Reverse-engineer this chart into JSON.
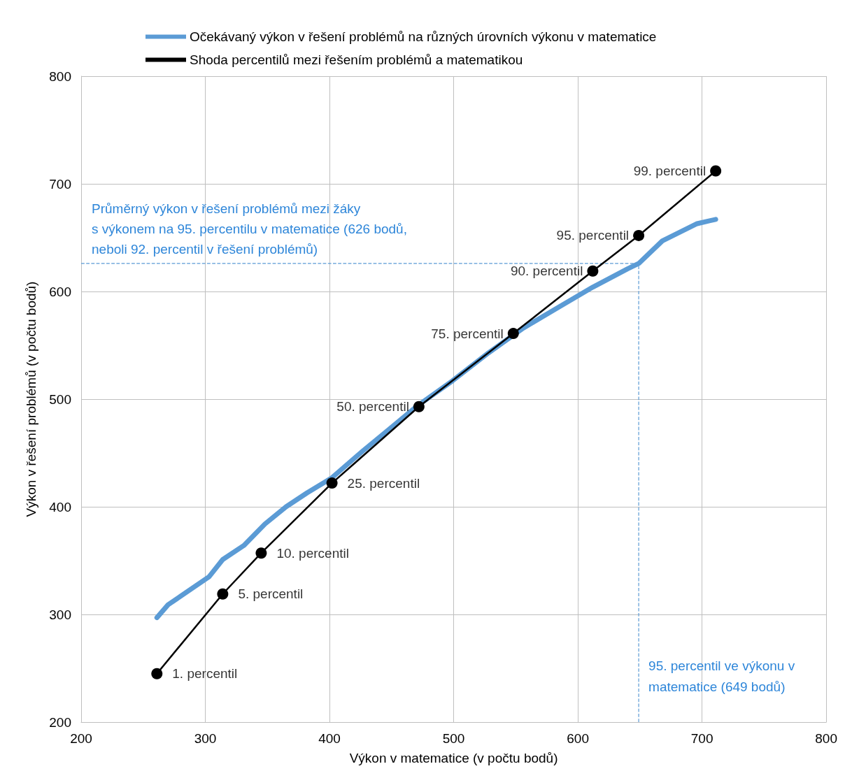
{
  "chart_data": {
    "type": "line",
    "xlabel": "Výkon v matematice (v počtu bodů)",
    "ylabel": "Výkon v řešení problémů (v počtu bodů)",
    "xlim": [
      200,
      800
    ],
    "xticks": [
      200,
      300,
      400,
      500,
      600,
      700,
      800
    ],
    "ylim": [
      200,
      800
    ],
    "yticks": [
      200,
      300,
      400,
      500,
      600,
      700,
      800
    ],
    "grid": true,
    "legend": "top",
    "line_style": "solid",
    "series": [
      {
        "name": "Očekávaný výkon v řešení problémů na různých úrovních výkonu v matematice",
        "color": "#5b9bd5",
        "marker": "none",
        "x": [
          261,
          270,
          303,
          314,
          331,
          348,
          365,
          382,
          402,
          427,
          449,
          471,
          499,
          528,
          556,
          584,
          612,
          640,
          649,
          668,
          696,
          711
        ],
        "values": [
          297,
          309,
          335,
          351,
          364,
          384,
          400,
          413,
          427,
          452,
          473,
          494,
          517,
          543,
          566,
          585,
          604,
          621,
          626,
          647,
          663,
          667
        ]
      },
      {
        "name": "Shoda percentilů mezi řešením problémů a matematikou",
        "color": "#000000",
        "marker": "circle",
        "x": [
          261,
          314,
          345,
          402,
          472,
          548,
          612,
          649,
          711
        ],
        "values": [
          245,
          319,
          357,
          422,
          493,
          561,
          619,
          652,
          712
        ]
      }
    ],
    "ref_lines": [
      {
        "axis": "y",
        "value": 626,
        "label": "Průměrný výkon v řešení problémů mezi žáky s výkonem na 95. percentilu v matematice (626 bodů, neboli 92. percentil v řešení problémů)",
        "color": "#5b9bd5",
        "line_style": "dashed"
      },
      {
        "axis": "x",
        "value": 649,
        "label": "95. percentil ve výkonu v matematice (649 bodů)",
        "color": "#5b9bd5",
        "line_style": "dashed"
      }
    ],
    "annotations": [
      {
        "text": "1. percentil",
        "x": 261,
        "y": 245
      },
      {
        "text": "5. percentil",
        "x": 314,
        "y": 319
      },
      {
        "text": "10. percentil",
        "x": 345,
        "y": 357
      },
      {
        "text": "25. percentil",
        "x": 402,
        "y": 422
      },
      {
        "text": "50. percentil",
        "x": 472,
        "y": 493
      },
      {
        "text": "75. percentil",
        "x": 548,
        "y": 561
      },
      {
        "text": "90. percentil",
        "x": 612,
        "y": 619
      },
      {
        "text": "95. percentil",
        "x": 649,
        "y": 652
      },
      {
        "text": "99. percentil",
        "x": 711,
        "y": 712
      }
    ]
  }
}
